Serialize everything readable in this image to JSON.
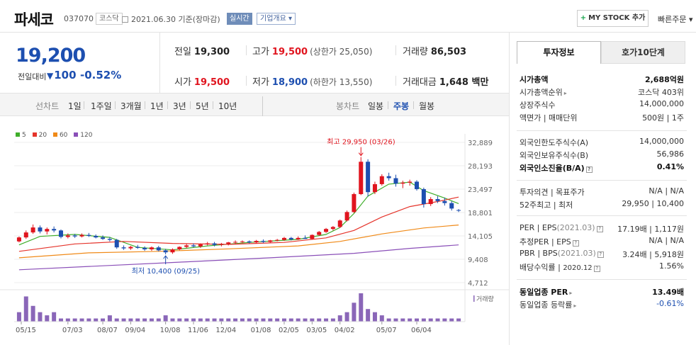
{
  "header": {
    "name": "파세코",
    "code": "037070",
    "market": "코스닥",
    "date_text": "2021.06.30  기준(장마감)",
    "live_badge": "실시간",
    "overview_label": "기업개요",
    "my_stock_label": "MY STOCK 추가",
    "quick_order": "빠른주문"
  },
  "price": {
    "current": "19,200",
    "change_label": "전일대비",
    "change_abs": "100",
    "change_pct": "-0.52%"
  },
  "quote": {
    "prev_label": "전일",
    "prev": "19,300",
    "high_label": "고가",
    "high": "19,500",
    "upper_limit": "(상한가 25,050)",
    "volume_label": "거래량",
    "volume": "86,503",
    "open_label": "시가",
    "open": "19,500",
    "low_label": "저가",
    "low": "18,900",
    "lower_limit": "(하한가 13,550)",
    "amount_label": "거래대금",
    "amount": "1,648 백만"
  },
  "periods": {
    "line_label": "선차트",
    "line_items": [
      "1일",
      "1주일",
      "3개월",
      "1년",
      "3년",
      "5년",
      "10년"
    ],
    "candle_label": "봉차트",
    "candle_items": [
      "일봉",
      "주봉",
      "월봉"
    ],
    "candle_active": "주봉"
  },
  "colors": {
    "up": "#e0141e",
    "down": "#1d4fb0",
    "ma5": "#3fae2a",
    "ma20": "#e5342b",
    "ma60": "#f08a18",
    "ma120": "#8a4fb8",
    "volume": "#8a66b8"
  },
  "chart_data": {
    "type": "candlestick",
    "legend": [
      "5",
      "20",
      "60",
      "120"
    ],
    "y_ticks": [
      "32,889",
      "28,193",
      "23,497",
      "18,801",
      "14,105",
      "9,408",
      "4,712"
    ],
    "ylim": [
      4712,
      32889
    ],
    "x_ticks": [
      "05/15",
      "07/03",
      "08/07",
      "09/04",
      "10/08",
      "11/06",
      "12/04",
      "01/08",
      "02/05",
      "03/05",
      "04/02",
      "05/07",
      "06/04"
    ],
    "high_annotation": "최고 29,950 (03/26)",
    "low_annotation": "최저 10,400 (09/25)",
    "volume_label": "거래량",
    "candles": [
      [
        13000,
        14000,
        12800,
        13800
      ],
      [
        13800,
        15200,
        13500,
        14800
      ],
      [
        14800,
        16400,
        14500,
        15800
      ],
      [
        15800,
        16200,
        14600,
        15000
      ],
      [
        15000,
        15800,
        14400,
        15500
      ],
      [
        15500,
        16000,
        14800,
        15200
      ],
      [
        15200,
        15400,
        13600,
        13900
      ],
      [
        13900,
        14600,
        13600,
        14200
      ],
      [
        14200,
        14500,
        13700,
        14000
      ],
      [
        14000,
        14600,
        13800,
        14300
      ],
      [
        14300,
        14700,
        13900,
        14100
      ],
      [
        14100,
        14400,
        13600,
        13800
      ],
      [
        13800,
        14200,
        13300,
        13500
      ],
      [
        13500,
        13900,
        13000,
        13300
      ],
      [
        13300,
        13500,
        11500,
        11800
      ],
      [
        11800,
        12200,
        11300,
        11600
      ],
      [
        11600,
        12100,
        11300,
        11900
      ],
      [
        11900,
        12300,
        11500,
        11700
      ],
      [
        11700,
        12000,
        11100,
        11400
      ],
      [
        11400,
        12000,
        11100,
        11800
      ],
      [
        11800,
        12100,
        11000,
        11200
      ],
      [
        11200,
        11500,
        10400,
        10800
      ],
      [
        10800,
        11600,
        10500,
        11400
      ],
      [
        11400,
        12000,
        11200,
        11900
      ],
      [
        11900,
        12500,
        11600,
        12200
      ],
      [
        12200,
        12600,
        11800,
        12000
      ],
      [
        12000,
        12600,
        11700,
        12400
      ],
      [
        12400,
        12900,
        12200,
        12600
      ],
      [
        12600,
        12900,
        12000,
        12300
      ],
      [
        12300,
        12700,
        12000,
        12500
      ],
      [
        12500,
        12900,
        12200,
        12800
      ],
      [
        12800,
        13200,
        12500,
        12900
      ],
      [
        12900,
        13200,
        12700,
        13000
      ],
      [
        13000,
        13200,
        12600,
        12800
      ],
      [
        12800,
        13300,
        12600,
        13100
      ],
      [
        13100,
        13400,
        12700,
        12900
      ],
      [
        12900,
        13300,
        12700,
        13200
      ],
      [
        13200,
        13500,
        13000,
        13300
      ],
      [
        13300,
        13900,
        13100,
        13700
      ],
      [
        13700,
        13900,
        13200,
        13400
      ],
      [
        13400,
        14000,
        13300,
        13700
      ],
      [
        13700,
        14200,
        13500,
        13500
      ],
      [
        13500,
        14400,
        13400,
        14300
      ],
      [
        14300,
        15100,
        14100,
        14900
      ],
      [
        14900,
        15700,
        14700,
        15500
      ],
      [
        15500,
        16100,
        15200,
        15900
      ],
      [
        15900,
        17400,
        15700,
        17200
      ],
      [
        17200,
        19200,
        17000,
        18900
      ],
      [
        18900,
        22800,
        18700,
        22500
      ],
      [
        22500,
        29950,
        22300,
        29000
      ],
      [
        29000,
        29500,
        22000,
        22900
      ],
      [
        22900,
        25000,
        22500,
        24500
      ],
      [
        24500,
        26500,
        24200,
        26100
      ],
      [
        26100,
        26800,
        25200,
        25700
      ],
      [
        25700,
        26400,
        24000,
        24600
      ],
      [
        24600,
        25200,
        23700,
        24800
      ],
      [
        24800,
        25400,
        24200,
        25000
      ],
      [
        25000,
        25300,
        23200,
        23500
      ],
      [
        23500,
        23800,
        19800,
        20500
      ],
      [
        20500,
        21900,
        20100,
        21500
      ],
      [
        21500,
        22100,
        20700,
        21100
      ],
      [
        21100,
        21800,
        20200,
        20700
      ],
      [
        20700,
        21100,
        19200,
        19600
      ],
      [
        19300,
        19500,
        18900,
        19200
      ]
    ],
    "volumes": [
      3,
      8,
      5,
      3,
      2,
      3,
      1,
      1,
      1,
      1,
      1,
      1,
      1,
      2,
      1,
      1,
      1,
      1,
      1,
      1,
      1,
      2,
      1,
      1,
      1,
      1,
      1,
      1,
      1,
      1,
      1,
      1,
      1,
      1,
      1,
      1,
      1,
      1,
      1,
      1,
      1,
      1,
      1,
      1,
      1,
      1,
      2,
      3,
      6,
      9,
      4,
      3,
      2,
      1,
      1,
      1,
      1,
      1,
      1,
      1,
      1,
      1,
      1,
      1
    ],
    "ma": {
      "5": [
        [
          0,
          12300
        ],
        [
          3,
          14000
        ],
        [
          8,
          14400
        ],
        [
          13,
          13800
        ],
        [
          17,
          11800
        ],
        [
          22,
          11300
        ],
        [
          27,
          12100
        ],
        [
          33,
          12800
        ],
        [
          40,
          13400
        ],
        [
          44,
          14400
        ],
        [
          46,
          15800
        ],
        [
          48,
          18600
        ],
        [
          50,
          22100
        ],
        [
          53,
          24500
        ],
        [
          56,
          24900
        ],
        [
          58,
          23200
        ],
        [
          61,
          21700
        ],
        [
          63,
          20600
        ]
      ],
      "20": [
        [
          0,
          11000
        ],
        [
          8,
          12500
        ],
        [
          15,
          13000
        ],
        [
          22,
          12600
        ],
        [
          30,
          12400
        ],
        [
          38,
          12800
        ],
        [
          44,
          13700
        ],
        [
          48,
          15200
        ],
        [
          52,
          17900
        ],
        [
          56,
          20000
        ],
        [
          60,
          21000
        ],
        [
          63,
          21900
        ]
      ],
      "60": [
        [
          0,
          9700
        ],
        [
          10,
          10700
        ],
        [
          20,
          11000
        ],
        [
          30,
          11500
        ],
        [
          40,
          12100
        ],
        [
          46,
          13000
        ],
        [
          52,
          14500
        ],
        [
          58,
          15700
        ],
        [
          63,
          16300
        ]
      ],
      "120": [
        [
          0,
          7300
        ],
        [
          12,
          8100
        ],
        [
          24,
          8900
        ],
        [
          36,
          9700
        ],
        [
          48,
          10600
        ],
        [
          56,
          11600
        ],
        [
          63,
          12300
        ]
      ]
    }
  },
  "info_tabs": [
    "투자정보",
    "호가10단계"
  ],
  "info": {
    "market_cap_label": "시가총액",
    "market_cap": "2,688억원",
    "rank_label": "시가총액순위",
    "rank": "코스닥 403위",
    "shares_label": "상장주식수",
    "shares": "14,000,000",
    "par_label": "액면가 | 매매단위",
    "par": "500원 | 1주",
    "foreign_limit_label": "외국인한도주식수(A)",
    "foreign_limit": "14,000,000",
    "foreign_hold_label": "외국인보유주식수(B)",
    "foreign_hold": "56,986",
    "foreign_ratio_label": "외국인소진율(B/A)",
    "foreign_ratio": "0.41%",
    "opinion_label": "투자의견 | 목표주가",
    "opinion": "N/A | N/A",
    "week52_label": "52주최고 | 최저",
    "week52": "29,950 | 10,400",
    "per_label": "PER | EPS",
    "per_date": "(2021.03)",
    "per": "17.19배 | 1,117원",
    "est_per_label": "추정PER | EPS",
    "est_per": "N/A | N/A",
    "pbr_label": "PBR | BPS",
    "pbr_date": "(2021.03)",
    "pbr": "3.24배 | 5,918원",
    "div_label": "배당수익률 |",
    "div_date": "2020.12",
    "div": "1.56%",
    "industry_per_label": "동일업종 PER",
    "industry_per": "13.49배",
    "industry_rate_label": "동일업종 등락률",
    "industry_rate": "-0.61%"
  }
}
